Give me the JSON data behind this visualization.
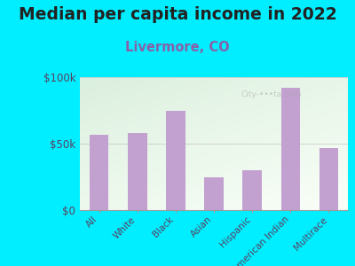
{
  "title": "Median per capita income in 2022",
  "subtitle": "Livermore, CO",
  "categories": [
    "All",
    "White",
    "Black",
    "Asian",
    "Hispanic",
    "American Indian",
    "Multirace"
  ],
  "values": [
    57000,
    58000,
    75000,
    25000,
    30000,
    92000,
    47000
  ],
  "bar_color": "#c2a0d0",
  "background_outer": "#00eeff",
  "ylim": [
    0,
    100000
  ],
  "yticks": [
    0,
    50000,
    100000
  ],
  "ytick_labels": [
    "$0",
    "$50k",
    "$100k"
  ],
  "title_fontsize": 13.5,
  "subtitle_fontsize": 10.5,
  "subtitle_color": "#8860a8",
  "tick_label_color": "#5a4060",
  "ytick_color": "#5a4060",
  "title_color": "#222222",
  "grid_color": "#cccccc",
  "watermark": "City-•••ta.com"
}
